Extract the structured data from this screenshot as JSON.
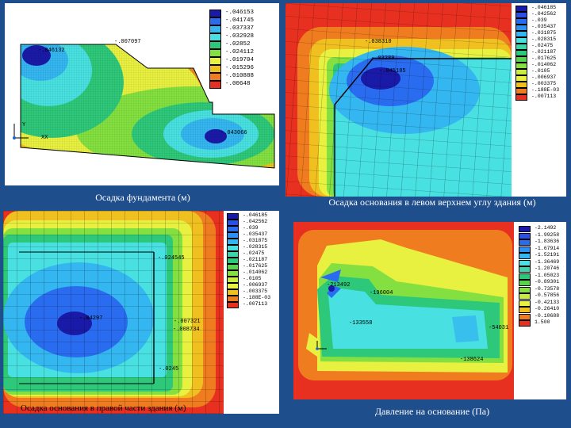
{
  "colors": {
    "background": "#1f4e8c",
    "contour": [
      "#1a1aa8",
      "#2a6cf0",
      "#34b6f0",
      "#48e0e0",
      "#2ec87a",
      "#84e040",
      "#e8f040",
      "#f0c020",
      "#f07c20",
      "#e83020"
    ]
  },
  "panels": {
    "top_left": {
      "caption": "Осадка фундамента (м)",
      "legend": [
        "-.046153",
        "-.041745",
        "-.037337",
        "-.032928",
        "-.02852",
        "-.024112",
        "-.019704",
        "-.015296",
        "-.010888",
        "-.00648"
      ],
      "labels": {
        "point_a": "-.046132",
        "point_b": "-.007097",
        "point_c": "-.043066",
        "axis_x": "XX",
        "axis_y": "Y"
      }
    },
    "top_right": {
      "caption": "Осадка основания в левом верхнем углу здания (м)",
      "legend": [
        "-.046185",
        "-.042562",
        "-.039",
        "-.035437",
        "-.031875",
        "-.028315",
        "-.02475",
        "-.021187",
        "-.017625",
        "-.014062",
        "-.0105",
        "-.006937",
        "-.003375",
        "-.188E-03",
        "-.007113"
      ],
      "labels": {
        "point_a": "-.038310",
        "point_b": "-.03289",
        "point_c": "-.045185"
      }
    },
    "bottom_left": {
      "caption": "Осадка основания в правой части здания (м)",
      "legend": [
        "-.046185",
        "-.042562",
        "-.039",
        "-.035437",
        "-.031875",
        "-.028315",
        "-.02475",
        "-.021187",
        "-.017625",
        "-.014062",
        "-.0105",
        "-.006937",
        "-.003375",
        "-.188E-03",
        "-.007113"
      ],
      "labels": {
        "point_a": "-.024545",
        "point_b": "-.04297",
        "point_c": "-.007321",
        "point_d": "-.008734",
        "point_e": "-.0245"
      }
    },
    "bottom_right": {
      "caption": "Давление на основание (Па)",
      "legend": [
        "-2.1492",
        "-1.99258",
        "-1.83636",
        "-1.67914",
        "-1.52191",
        "-1.36469",
        "-1.20746",
        "-1.05023",
        "-0.89301",
        "-0.73578",
        "-0.57856",
        "-0.42133",
        "-0.26410",
        "-0.10688",
        "1.500"
      ],
      "labels": {
        "point_a": "-213492",
        "point_b": "-196004",
        "point_c": "-133558",
        "point_d": "-54031",
        "point_e": "-138624"
      }
    }
  }
}
